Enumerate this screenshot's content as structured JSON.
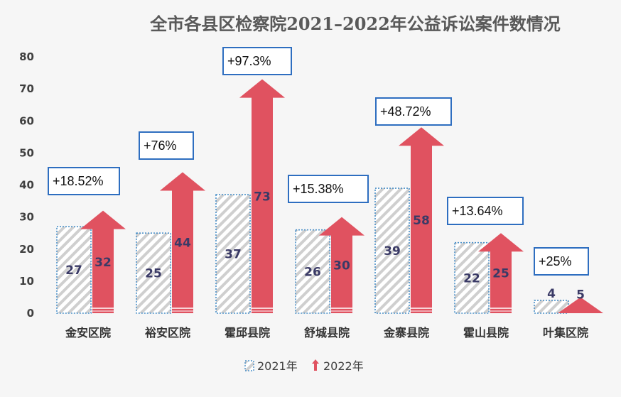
{
  "chart_data": {
    "type": "bar",
    "title": "全市各县区检察院2021–2022年公益诉讼案件数情况",
    "categories": [
      "金安区院",
      "裕安区院",
      "霍邱县院",
      "舒城县院",
      "金寨县院",
      "霍山县院",
      "叶集区院"
    ],
    "series": [
      {
        "name": "2021年",
        "values": [
          27,
          25,
          37,
          26,
          39,
          22,
          4
        ],
        "style": "hatched",
        "color": "#c8c8c8",
        "border_color": "#4a90c8"
      },
      {
        "name": "2022年",
        "values": [
          32,
          44,
          73,
          30,
          58,
          25,
          5
        ],
        "style": "arrow",
        "color": "#e05260"
      }
    ],
    "annotations": [
      "+18.52%",
      "+76%",
      "+97.3%",
      "+15.38%",
      "+48.72%",
      "+13.64%",
      "+25%"
    ],
    "ylim": [
      0,
      80
    ],
    "yticks": [
      0,
      10,
      20,
      30,
      40,
      50,
      60,
      70,
      80
    ],
    "grid": false,
    "legend": "bottom",
    "annotation_border_color": "#2e6ec0"
  }
}
